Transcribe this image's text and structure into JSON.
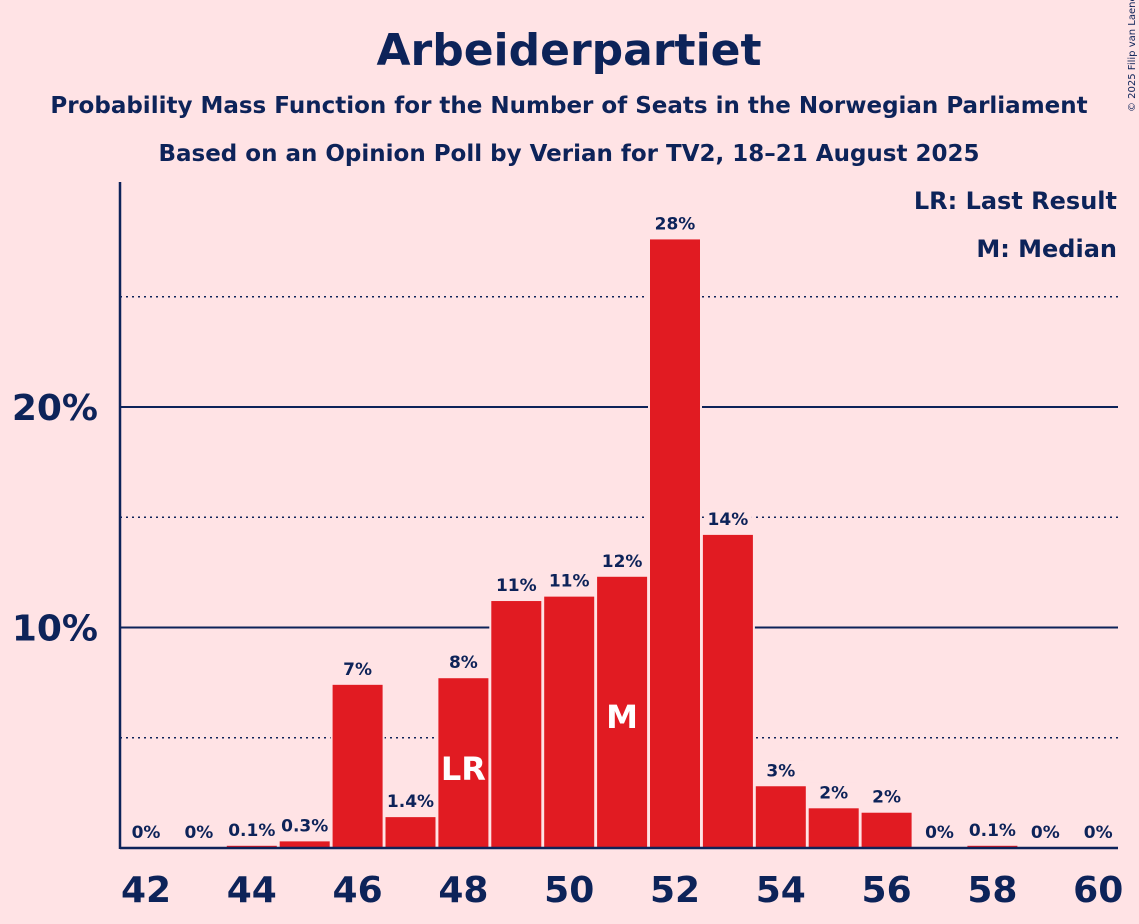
{
  "chart_data": {
    "type": "bar",
    "title": "Arbeiderpartiet",
    "subtitle1": "Probability Mass Function for the Number of Seats in the Norwegian Parliament",
    "subtitle2": "Based on an Opinion Poll by Verian for TV2, 18–21 August 2025",
    "copyright": "© 2025 Filip van Laenen",
    "legend": {
      "lr": "LR: Last Result",
      "m": "M: Median"
    },
    "ylim": [
      0,
      30
    ],
    "y_ticks": [
      {
        "value": 10,
        "label": "10%"
      },
      {
        "value": 20,
        "label": "20%"
      }
    ],
    "dotted_gridlines": [
      5,
      15,
      25
    ],
    "x_ticks": [
      "42",
      "44",
      "46",
      "48",
      "50",
      "52",
      "54",
      "56",
      "58",
      "60"
    ],
    "categories": [
      42,
      43,
      44,
      45,
      46,
      47,
      48,
      49,
      50,
      51,
      52,
      53,
      54,
      55,
      56,
      57,
      58,
      59,
      60
    ],
    "values": [
      0,
      0,
      0.1,
      0.3,
      7.4,
      1.4,
      7.7,
      11.2,
      11.4,
      12.3,
      27.6,
      14.2,
      2.8,
      1.8,
      1.6,
      0,
      0.1,
      0,
      0
    ],
    "labels": [
      "0%",
      "0%",
      "0.1%",
      "0.3%",
      "7%",
      "1.4%",
      "8%",
      "11%",
      "11%",
      "12%",
      "28%",
      "14%",
      "3%",
      "2%",
      "2%",
      "0%",
      "0.1%",
      "0%",
      "0%"
    ],
    "last_result": 48,
    "last_result_marker": "LR",
    "median": 51,
    "median_marker": "M",
    "colors": {
      "bar": "#E11B22",
      "text": "#0D2359",
      "background": "#FFE3E5"
    }
  }
}
